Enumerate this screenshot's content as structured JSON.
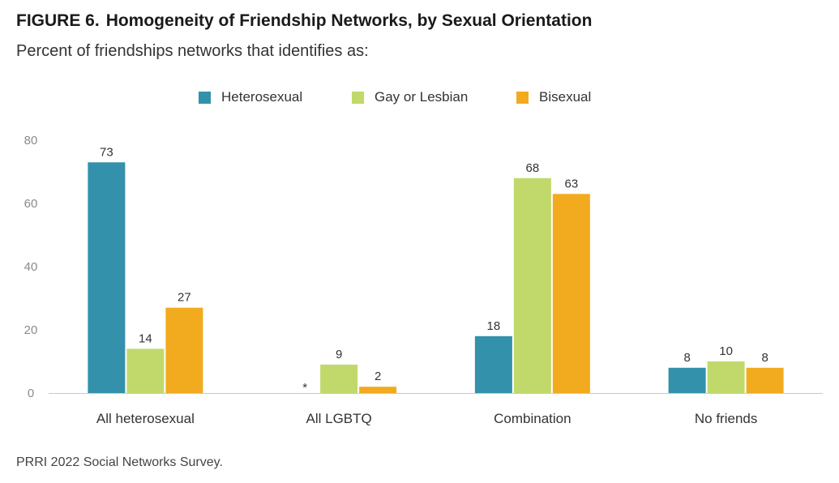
{
  "figure": {
    "label": "FIGURE 6.",
    "title": "Homogeneity of Friendship Networks, by Sexual Orientation",
    "subtitle": "Percent of friendships networks that identifies as:",
    "source": "PRRI 2022 Social Networks Survey."
  },
  "chart_data": {
    "type": "bar",
    "categories": [
      "All heterosexual",
      "All LGBTQ",
      "Combination",
      "No friends"
    ],
    "series": [
      {
        "name": "Heterosexual",
        "color": "#3391ab",
        "values": [
          73,
          null,
          18,
          8
        ],
        "labels": [
          "73",
          "*",
          "18",
          "8"
        ]
      },
      {
        "name": "Gay or Lesbian",
        "color": "#c0d96a",
        "values": [
          14,
          9,
          68,
          10
        ],
        "labels": [
          "14",
          "9",
          "68",
          "10"
        ]
      },
      {
        "name": "Bisexual",
        "color": "#f2ab1e",
        "values": [
          27,
          2,
          63,
          8
        ],
        "labels": [
          "27",
          "2",
          "63",
          "8"
        ]
      }
    ],
    "yticks": [
      0,
      20,
      40,
      60,
      80
    ],
    "ylim": [
      0,
      80
    ],
    "grid": false,
    "legend_position": "top-center"
  }
}
